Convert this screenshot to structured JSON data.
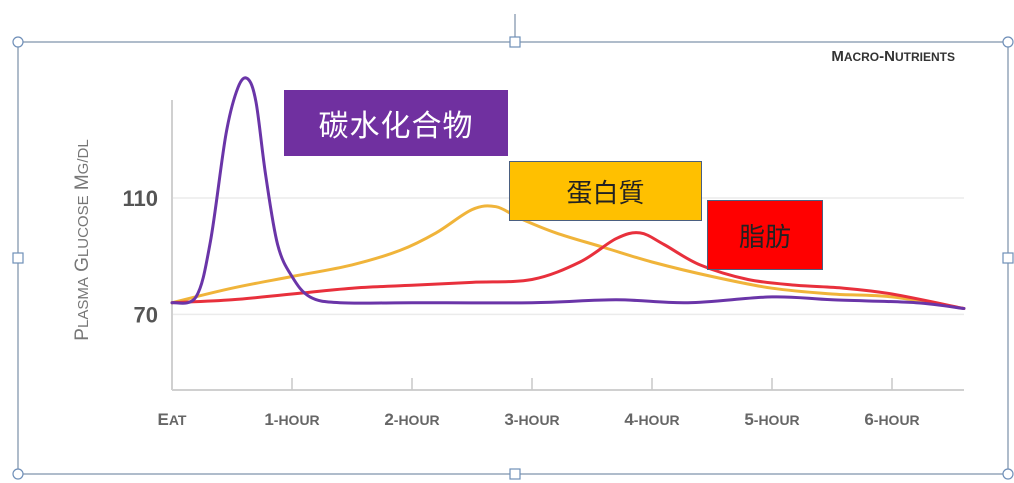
{
  "chart_data": {
    "type": "line",
    "title": "Macro-Nutrients",
    "ylabel": "Plasma Glucose mg/dl",
    "xlabel": "",
    "categories": [
      "Eat",
      "1-hour",
      "2-hour",
      "3-hour",
      "4-hour",
      "5-hour",
      "6-hour"
    ],
    "x_tick_values": [
      0,
      1,
      2,
      3,
      4,
      5,
      6
    ],
    "y_tick_values": [
      70,
      110
    ],
    "xlim": [
      0,
      6.6
    ],
    "ylim": [
      44,
      154
    ],
    "grid": true,
    "series": [
      {
        "name": "碳水化合物",
        "color": "#6a35a8",
        "x": [
          0,
          0.2,
          0.32,
          0.45,
          0.55,
          0.63,
          0.7,
          0.78,
          0.88,
          1.0,
          1.15,
          1.4,
          2.0,
          3.0,
          3.7,
          4.3,
          5.0,
          5.5,
          6.2,
          6.6
        ],
        "y": [
          74,
          76,
          95,
          132,
          148,
          151,
          143,
          118,
          94,
          83,
          76,
          74,
          74,
          74,
          75,
          74,
          76,
          75,
          74,
          72
        ]
      },
      {
        "name": "蛋白質",
        "color": "#f0b43a",
        "x": [
          0,
          0.5,
          1.0,
          1.5,
          1.9,
          2.2,
          2.5,
          2.7,
          2.9,
          3.2,
          3.6,
          4.0,
          4.5,
          5.0,
          5.5,
          6.0,
          6.6
        ],
        "y": [
          74,
          79,
          83,
          87,
          92,
          98,
          106,
          107,
          103,
          98,
          93,
          88,
          83,
          79,
          77,
          76,
          72
        ]
      },
      {
        "name": "脂肪",
        "color": "#e8303c",
        "x": [
          0,
          0.5,
          1.0,
          1.5,
          2.0,
          2.5,
          3.0,
          3.4,
          3.7,
          3.9,
          4.1,
          4.4,
          4.8,
          5.2,
          5.6,
          6.0,
          6.6
        ],
        "y": [
          74,
          75,
          77,
          79,
          80,
          81,
          82,
          88,
          96,
          98,
          94,
          87,
          82,
          80,
          79,
          77,
          72
        ]
      }
    ]
  }
}
